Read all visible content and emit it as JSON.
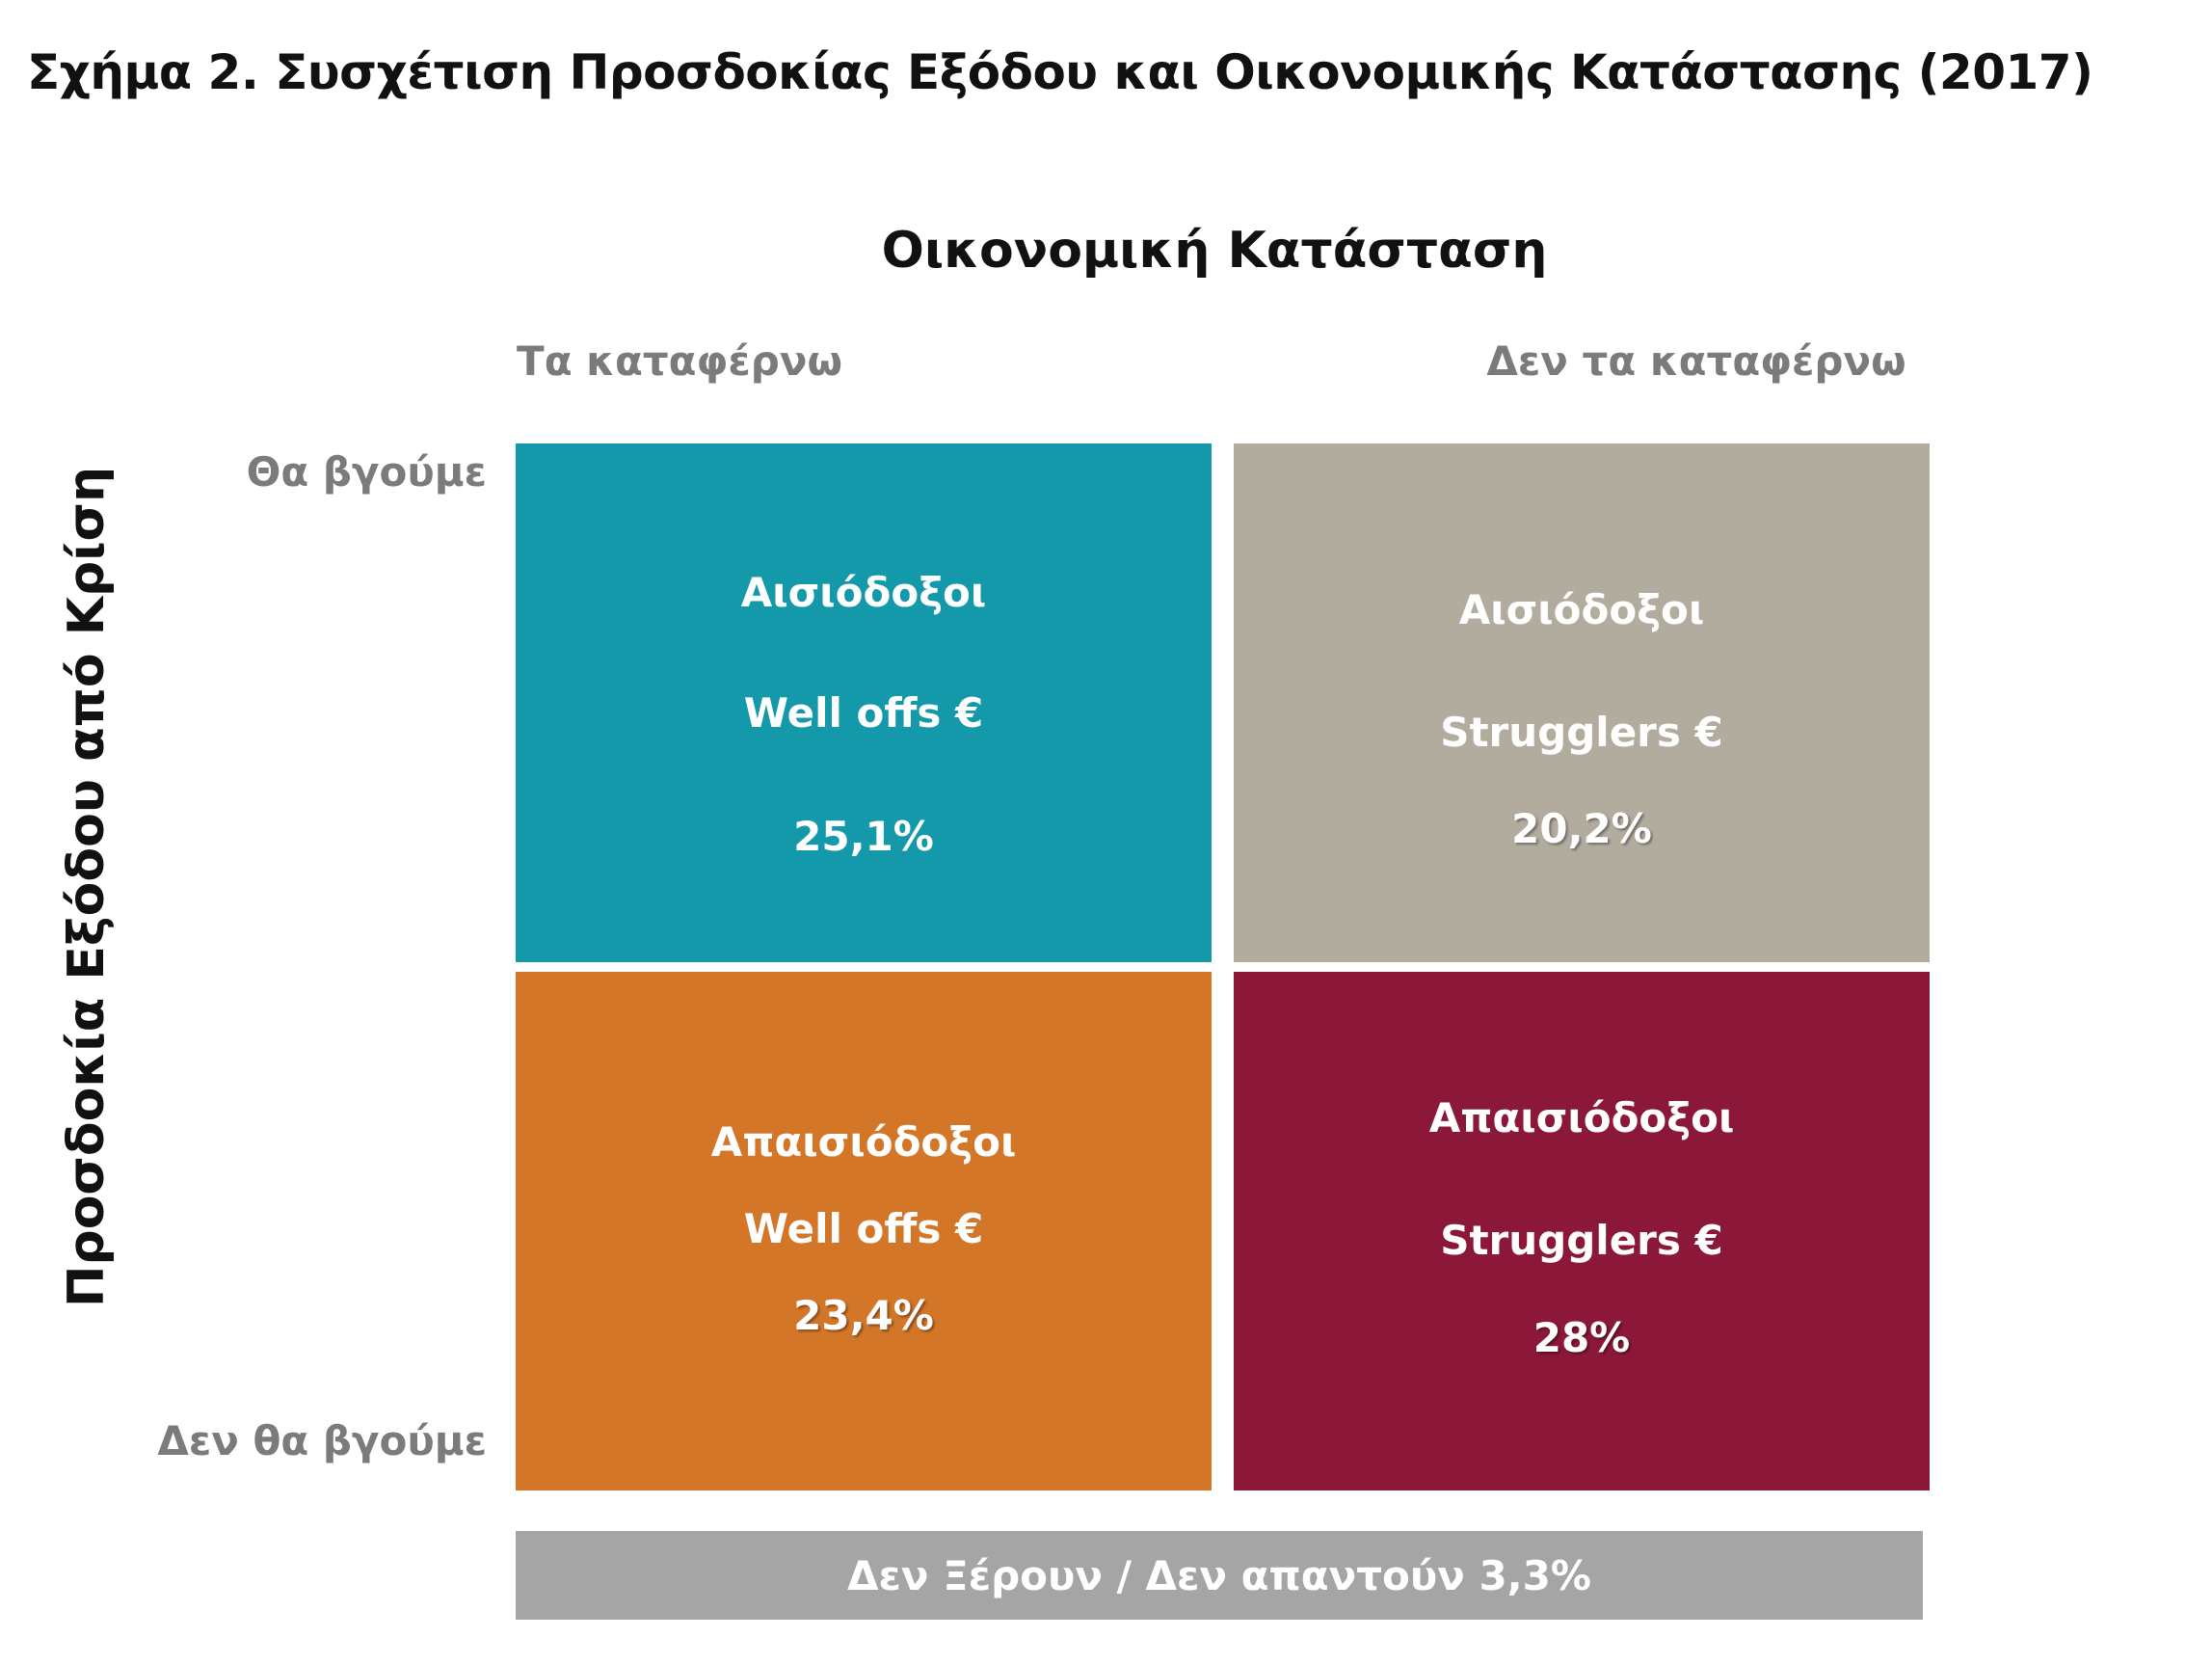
{
  "title": "Σχήμα 2. Συσχέτιση Προσδοκίας Εξόδου και Οικονομικής Κατάστασης (2017)",
  "x_axis_title": "Οικονομική Κατάσταση",
  "y_axis_title": "Προσδοκία Εξόδου από Κρίση",
  "columns": [
    "Τα καταφέρνω",
    "Δεν τα καταφέρνω"
  ],
  "rows": [
    "Θα βγούμε",
    "Δεν θα βγούμε"
  ],
  "quadrants": [
    {
      "group": "Αισιόδοξοι",
      "segment": "Well offs €",
      "value": "25,1%",
      "color": "#1399aa"
    },
    {
      "group": "Αισιόδοξοι",
      "segment": "Strugglers €",
      "value": "20,2%",
      "color": "#b2ac9f"
    },
    {
      "group": "Απαισιόδοξοι",
      "segment": "Well offs €",
      "value": "23,4%",
      "color": "#d37628"
    },
    {
      "group": "Απαισιόδοξοι",
      "segment": "Strugglers €",
      "value": "28%",
      "color": "#8b1838"
    }
  ],
  "footer_bar": {
    "label": "Δεν Ξέρουν / Δεν απαντούν 3,3%",
    "color": "#a5a5a5"
  }
}
